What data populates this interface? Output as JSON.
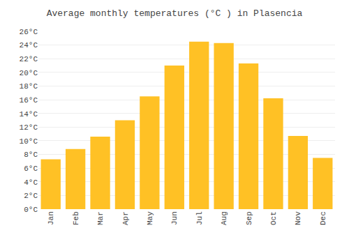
{
  "chart_data": {
    "type": "bar",
    "title": "Average monthly temperatures (°C ) in Plasencia",
    "categories": [
      "Jan",
      "Feb",
      "Mar",
      "Apr",
      "May",
      "Jun",
      "Jul",
      "Aug",
      "Sep",
      "Oct",
      "Nov",
      "Dec"
    ],
    "values": [
      7.3,
      8.8,
      10.6,
      13.0,
      16.5,
      21.0,
      24.5,
      24.3,
      21.3,
      16.2,
      10.7,
      7.5
    ],
    "color": "#FFC125",
    "ylim": [
      0,
      26
    ],
    "yticks": [
      {
        "value": 0,
        "label": "0°C"
      },
      {
        "value": 2,
        "label": "2°C"
      },
      {
        "value": 4,
        "label": "4°C"
      },
      {
        "value": 6,
        "label": "6°C"
      },
      {
        "value": 8,
        "label": "8°C"
      },
      {
        "value": 10,
        "label": "10°C"
      },
      {
        "value": 12,
        "label": "12°C"
      },
      {
        "value": 14,
        "label": "14°C"
      },
      {
        "value": 16,
        "label": "16°C"
      },
      {
        "value": 18,
        "label": "18°C"
      },
      {
        "value": 20,
        "label": "20°C"
      },
      {
        "value": 22,
        "label": "22°C"
      },
      {
        "value": 24,
        "label": "24°C"
      },
      {
        "value": 26,
        "label": "26°C"
      }
    ],
    "grid": true
  }
}
